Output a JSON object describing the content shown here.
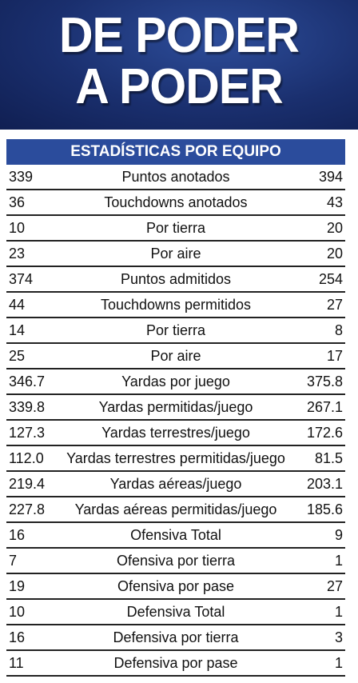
{
  "header": {
    "title_lines": [
      "DE PODER",
      "A PODER"
    ]
  },
  "table": {
    "title": "ESTADÍSTICAS POR EQUIPO",
    "rows": [
      [
        "339",
        "Puntos anotados",
        "394"
      ],
      [
        "36",
        "Touchdowns anotados",
        "43"
      ],
      [
        "10",
        "Por tierra",
        "20"
      ],
      [
        "23",
        "Por aire",
        "20"
      ],
      [
        "374",
        "Puntos admitidos",
        "254"
      ],
      [
        "44",
        "Touchdowns permitidos",
        "27"
      ],
      [
        "14",
        "Por tierra",
        "8"
      ],
      [
        "25",
        "Por aire",
        "17"
      ],
      [
        "346.7",
        "Yardas por juego",
        "375.8"
      ],
      [
        "339.8",
        "Yardas permitidas/juego",
        "267.1"
      ],
      [
        "127.3",
        "Yardas terrestres/juego",
        "172.6"
      ],
      [
        "112.0",
        "Yardas terrestres permitidas/juego",
        "81.5"
      ],
      [
        "219.4",
        "Yardas aéreas/juego",
        "203.1"
      ],
      [
        "227.8",
        "Yardas aéreas permitidas/juego",
        "185.6"
      ],
      [
        "16",
        "Ofensiva Total",
        "9"
      ],
      [
        "7",
        "Ofensiva por tierra",
        "1"
      ],
      [
        "19",
        "Ofensiva por pase",
        "27"
      ],
      [
        "10",
        "Defensiva Total",
        "1"
      ],
      [
        "16",
        "Defensiva por tierra",
        "3"
      ],
      [
        "11",
        "Defensiva por pase",
        "1"
      ]
    ]
  }
}
